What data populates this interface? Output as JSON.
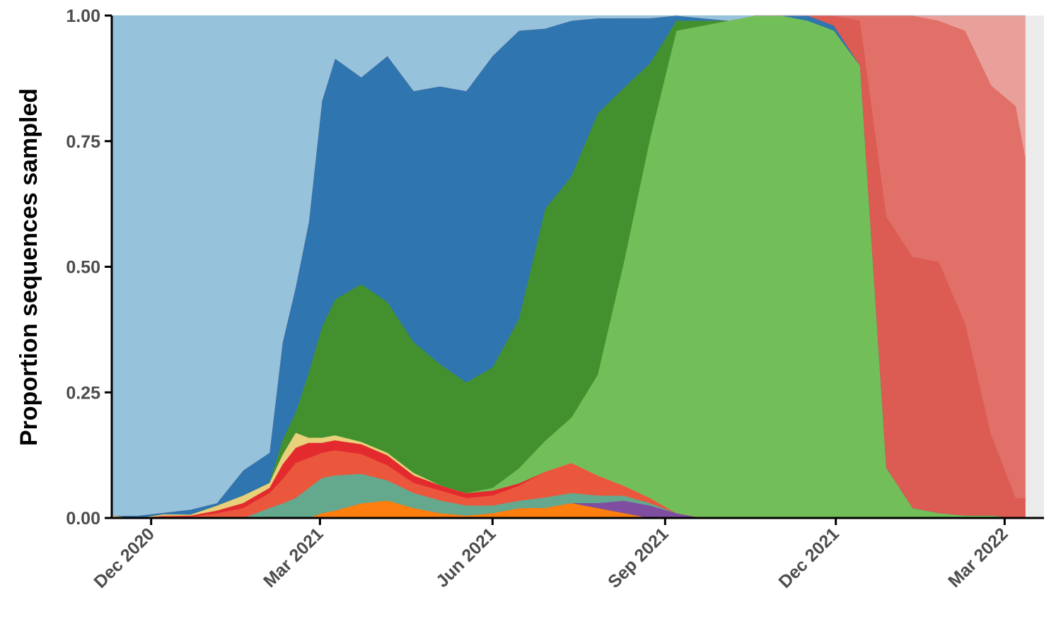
{
  "chart_data": {
    "type": "area",
    "stacked": true,
    "normalized": true,
    "title": "",
    "xlabel": "",
    "ylabel": "Proportion sequences sampled",
    "xlim": [
      "2020-11-10",
      "2022-03-22"
    ],
    "ylim": [
      0,
      1
    ],
    "grid": false,
    "legend": "none",
    "x_ticks": [
      {
        "date": "2020-12-01",
        "label": "Dec 2020"
      },
      {
        "date": "2021-03-01",
        "label": "Mar 2021"
      },
      {
        "date": "2021-06-01",
        "label": "Jun 2021"
      },
      {
        "date": "2021-09-01",
        "label": "Sep 2021"
      },
      {
        "date": "2021-12-01",
        "label": "Dec 2021"
      },
      {
        "date": "2022-03-01",
        "label": "Mar 2022"
      }
    ],
    "y_ticks": [
      {
        "value": 0,
        "label": "0.00"
      },
      {
        "value": 0.25,
        "label": "0.25"
      },
      {
        "value": 0.5,
        "label": "0.50"
      },
      {
        "value": 0.75,
        "label": "0.75"
      },
      {
        "value": 1,
        "label": "1.00"
      }
    ],
    "x": [
      "2020-11-10",
      "2020-11-24",
      "2020-12-08",
      "2020-12-22",
      "2021-01-05",
      "2021-01-19",
      "2021-02-02",
      "2021-02-09",
      "2021-02-16",
      "2021-02-23",
      "2021-03-02",
      "2021-03-09",
      "2021-03-23",
      "2021-04-06",
      "2021-04-20",
      "2021-05-04",
      "2021-05-18",
      "2021-06-01",
      "2021-06-15",
      "2021-06-29",
      "2021-07-13",
      "2021-07-27",
      "2021-08-10",
      "2021-08-24",
      "2021-09-07",
      "2021-09-21",
      "2021-10-05",
      "2021-10-19",
      "2021-11-02",
      "2021-11-16",
      "2021-11-30",
      "2021-12-14",
      "2021-12-28",
      "2022-01-11",
      "2022-01-25",
      "2022-02-08",
      "2022-02-22",
      "2022-03-07",
      "2022-03-12"
    ],
    "series": [
      {
        "color": "#fe7f0e",
        "values": [
          0,
          0,
          0,
          0,
          0,
          0,
          0,
          0,
          0,
          0,
          0.01,
          0.015,
          0.03,
          0.035,
          0.02,
          0.01,
          0.005,
          0.01,
          0.02,
          0.02,
          0.03,
          0.02,
          0.01,
          0,
          0,
          0,
          0,
          0,
          0,
          0,
          0,
          0,
          0,
          0,
          0,
          0,
          0,
          0,
          0
        ]
      },
      {
        "color": "#7f4ea0",
        "values": [
          0,
          0,
          0,
          0,
          0,
          0,
          0,
          0,
          0,
          0,
          0,
          0,
          0,
          0,
          0,
          0,
          0,
          0,
          0,
          0,
          0,
          0.01,
          0.025,
          0.025,
          0.01,
          0,
          0,
          0,
          0,
          0,
          0,
          0,
          0,
          0,
          0,
          0,
          0,
          0,
          0
        ]
      },
      {
        "color": "#64a98e",
        "values": [
          0,
          0,
          0,
          0,
          0,
          0,
          0.02,
          0.03,
          0.04,
          0.06,
          0.07,
          0.07,
          0.06,
          0.04,
          0.03,
          0.025,
          0.02,
          0.015,
          0.015,
          0.02,
          0.02,
          0.015,
          0.01,
          0.005,
          0,
          0,
          0,
          0,
          0,
          0,
          0,
          0,
          0,
          0,
          0,
          0,
          0,
          0,
          0
        ]
      },
      {
        "color": "#ea573d",
        "values": [
          0,
          0,
          0.005,
          0.003,
          0.01,
          0.02,
          0.03,
          0.05,
          0.07,
          0.06,
          0.05,
          0.05,
          0.04,
          0.03,
          0.02,
          0.02,
          0.015,
          0.02,
          0.03,
          0.05,
          0.06,
          0.04,
          0.02,
          0.01,
          0,
          0,
          0,
          0,
          0,
          0,
          0,
          0,
          0,
          0,
          0,
          0,
          0,
          0,
          0
        ]
      },
      {
        "color": "#e32b2f",
        "values": [
          0,
          0,
          0,
          0.002,
          0.005,
          0.01,
          0.01,
          0.03,
          0.03,
          0.03,
          0.02,
          0.02,
          0.02,
          0.02,
          0.015,
          0.01,
          0.01,
          0.01,
          0.005,
          0,
          0,
          0,
          0,
          0,
          0,
          0,
          0,
          0,
          0,
          0,
          0,
          0,
          0,
          0,
          0,
          0,
          0,
          0,
          0
        ]
      },
      {
        "color": "#e9d07a",
        "values": [
          0.005,
          0,
          0.003,
          0.002,
          0.01,
          0.015,
          0.01,
          0.02,
          0.03,
          0.01,
          0.01,
          0.01,
          0.005,
          0.005,
          0.005,
          0,
          0,
          0,
          0,
          0,
          0,
          0,
          0,
          0,
          0,
          0,
          0,
          0,
          0,
          0,
          0,
          0,
          0,
          0,
          0,
          0,
          0,
          0,
          0
        ]
      },
      {
        "color": "#72bf5a",
        "values": [
          0,
          0,
          0,
          0,
          0,
          0,
          0,
          0,
          0,
          0,
          0,
          0,
          0,
          0,
          0,
          0,
          0,
          0.005,
          0.03,
          0.06,
          0.09,
          0.2,
          0.45,
          0.72,
          0.96,
          0.98,
          0.99,
          1.0,
          1.0,
          0.99,
          0.98,
          0.9,
          0.1,
          0.02,
          0.01,
          0.005,
          0.005,
          0,
          0
        ]
      },
      {
        "color": "#43912e",
        "values": [
          0,
          0,
          0,
          0,
          0,
          0,
          0,
          0.03,
          0.04,
          0.13,
          0.22,
          0.27,
          0.32,
          0.3,
          0.26,
          0.24,
          0.22,
          0.24,
          0.3,
          0.45,
          0.48,
          0.52,
          0.35,
          0.15,
          0.02,
          0.01,
          0,
          0,
          0,
          0,
          0,
          0,
          0,
          0,
          0,
          0,
          0,
          0,
          0
        ]
      },
      {
        "color": "#2f75b0",
        "values": [
          0,
          0.005,
          0.003,
          0.01,
          0.005,
          0.05,
          0.06,
          0.2,
          0.25,
          0.3,
          0.45,
          0.48,
          0.42,
          0.49,
          0.5,
          0.55,
          0.58,
          0.62,
          0.58,
          0.35,
          0.31,
          0.19,
          0.14,
          0.09,
          0.01,
          0.005,
          0,
          0,
          0,
          0.01,
          0.01,
          0,
          0,
          0,
          0,
          0,
          0,
          0,
          0
        ]
      },
      {
        "color": "#dc5b53",
        "values": [
          0,
          0,
          0,
          0,
          0,
          0,
          0,
          0,
          0,
          0,
          0,
          0,
          0,
          0,
          0,
          0,
          0,
          0,
          0,
          0,
          0,
          0,
          0,
          0,
          0,
          0,
          0,
          0,
          0,
          0,
          0.02,
          0.09,
          0.5,
          0.5,
          0.5,
          0.38,
          0.16,
          0.04,
          0.04
        ]
      },
      {
        "color": "#e17069",
        "values": [
          0,
          0,
          0,
          0,
          0,
          0,
          0,
          0,
          0,
          0,
          0,
          0,
          0,
          0,
          0,
          0,
          0,
          0,
          0,
          0,
          0,
          0,
          0,
          0,
          0,
          0,
          0,
          0,
          0,
          0,
          0,
          0.01,
          0.4,
          0.48,
          0.48,
          0.58,
          0.7,
          0.78,
          0.68
        ]
      },
      {
        "color": "#e9a09a",
        "values": [
          0,
          0,
          0,
          0,
          0,
          0,
          0,
          0,
          0,
          0,
          0,
          0,
          0,
          0,
          0,
          0,
          0,
          0,
          0,
          0,
          0,
          0,
          0,
          0,
          0,
          0,
          0,
          0,
          0,
          0,
          0,
          0,
          0,
          0,
          0.01,
          0.03,
          0.14,
          0.18,
          0.28
        ]
      },
      {
        "color": "#96c2db",
        "values": [
          0.995,
          0.995,
          0.989,
          0.983,
          0.97,
          0.905,
          0.87,
          0.67,
          0.54,
          0.41,
          0.17,
          0.085,
          0.125,
          0.08,
          0.15,
          0.14,
          0.15,
          0.08,
          0.03,
          0.025,
          0.01,
          0.005,
          0.005,
          0.005,
          0,
          0.005,
          0.01,
          0,
          0,
          0,
          0,
          0,
          0,
          0,
          0,
          0,
          0,
          0,
          0
        ]
      }
    ]
  }
}
